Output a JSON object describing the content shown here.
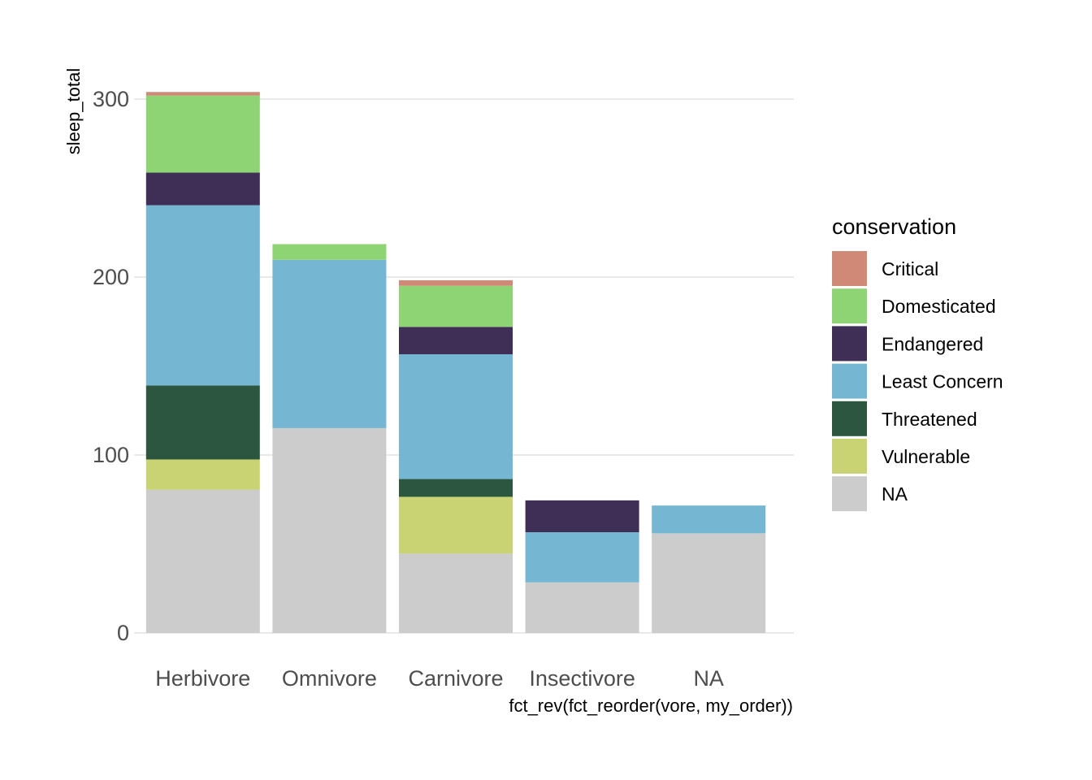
{
  "chart_data": {
    "type": "bar",
    "stacked": true,
    "xlabel": "fct_rev(fct_reorder(vore, my_order))",
    "ylabel": "sleep_total",
    "ylim": [
      0,
      300
    ],
    "yticks": [
      0,
      100,
      200,
      300
    ],
    "categories": [
      "Herbivore",
      "Omnivore",
      "Carnivore",
      "Insectivore",
      "NA"
    ],
    "legend": {
      "title": "conservation",
      "placement": "right"
    },
    "grid": "horizontal",
    "series": [
      {
        "name": "NA",
        "color": "#cccccc",
        "values": [
          80.5,
          115.1,
          44.6,
          28.4,
          56.0
        ]
      },
      {
        "name": "Vulnerable",
        "color": "#c9d373",
        "values": [
          17.0,
          0,
          31.9,
          0,
          0
        ]
      },
      {
        "name": "Threatened",
        "color": "#2d5641",
        "values": [
          41.6,
          0,
          10.0,
          0,
          0
        ]
      },
      {
        "name": "Least Concern",
        "color": "#75b7d2",
        "values": [
          101.3,
          94.6,
          70.1,
          28.2,
          15.6
        ]
      },
      {
        "name": "Endangered",
        "color": "#3f2e55",
        "values": [
          18.3,
          0,
          15.4,
          17.9,
          0
        ]
      },
      {
        "name": "Domesticated",
        "color": "#8fd474",
        "values": [
          43.3,
          8.8,
          23.1,
          0,
          0
        ]
      },
      {
        "name": "Critical",
        "color": "#d18977",
        "values": [
          2.0,
          0,
          3.1,
          0,
          0
        ]
      }
    ],
    "legend_order": [
      "Critical",
      "Domesticated",
      "Endangered",
      "Least Concern",
      "Threatened",
      "Vulnerable",
      "NA"
    ]
  }
}
